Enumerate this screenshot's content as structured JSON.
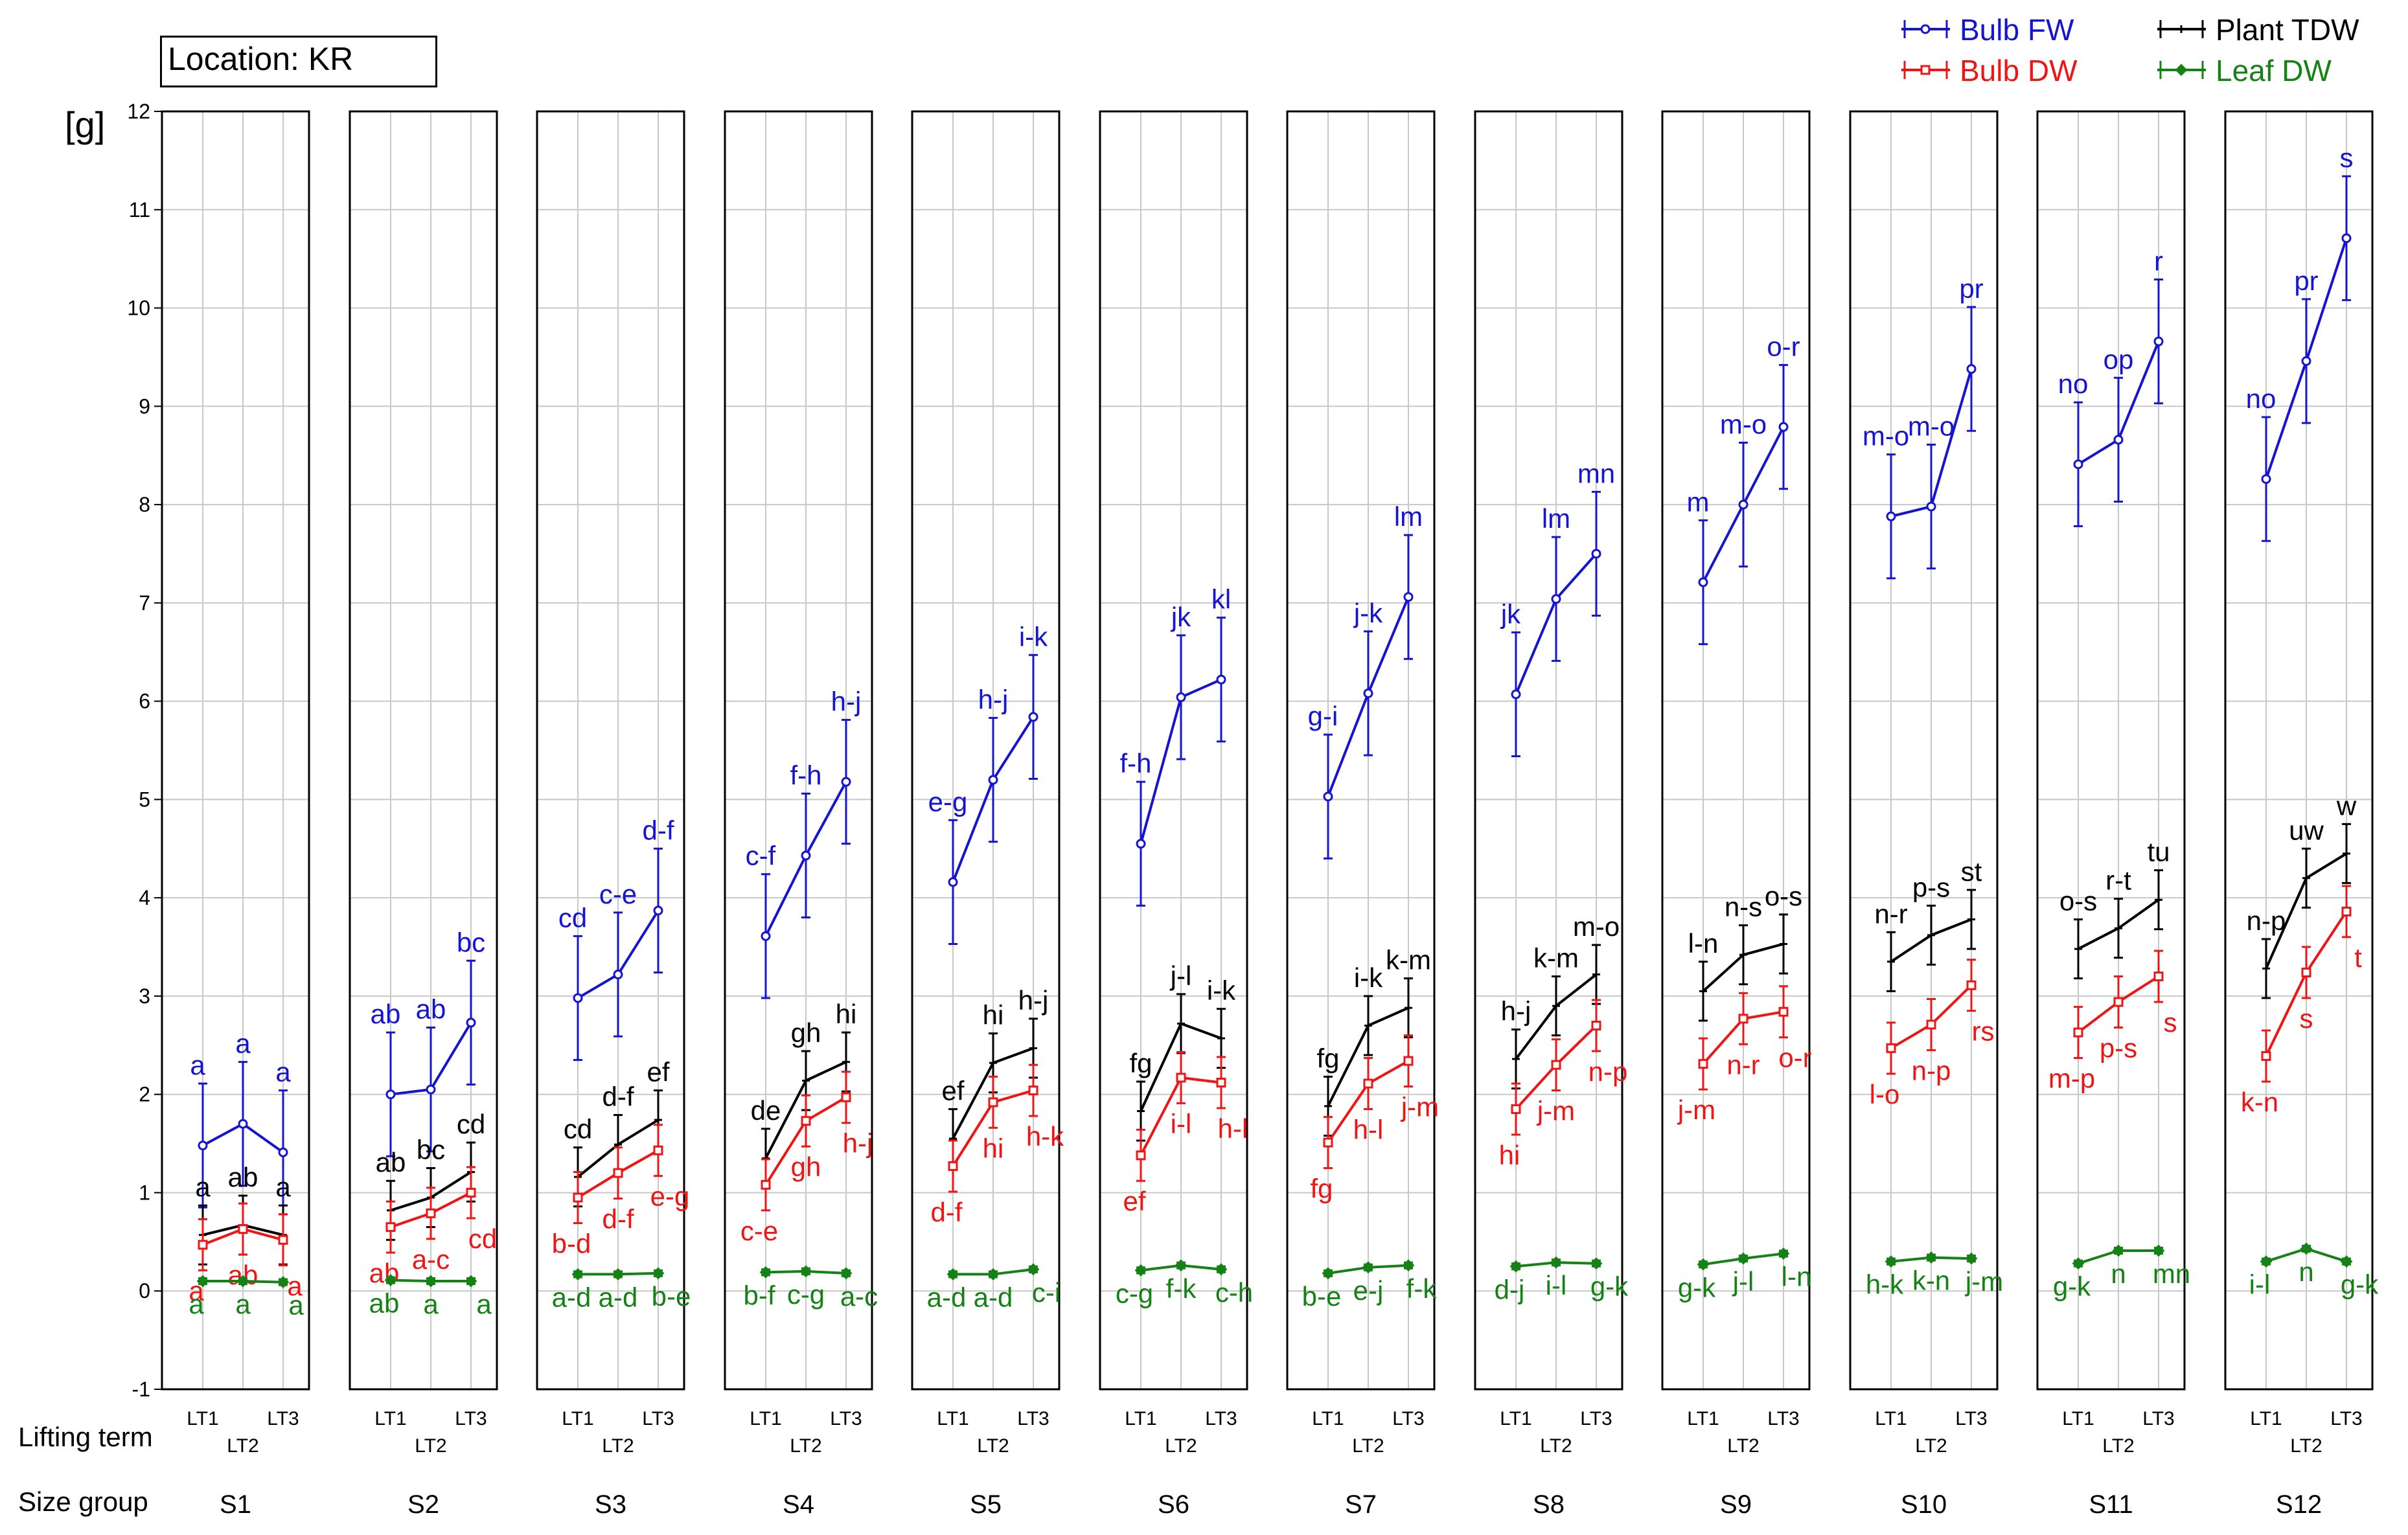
{
  "location_label": "Location: KR",
  "unit_label": "[g]",
  "lifting_term_label": "Lifting term",
  "size_group_label": "Size group",
  "colors": {
    "bulb_fw": "#1414d2",
    "bulb_dw": "#f01414",
    "plant_tdw": "#000000",
    "leaf_dw": "#148214"
  },
  "legend": [
    {
      "name": "Bulb FW",
      "color": "#1414d2",
      "marker": "circle"
    },
    {
      "name": "Plant TDW",
      "color": "#000000",
      "marker": "plus"
    },
    {
      "name": "Bulb DW",
      "color": "#f01414",
      "marker": "square"
    },
    {
      "name": "Leaf DW",
      "color": "#148214",
      "marker": "diamond"
    }
  ],
  "chart_data": {
    "type": "line",
    "title": "",
    "ylabel": "[g]",
    "ylim": [
      -1,
      12
    ],
    "yticks": [
      -1,
      0,
      1,
      2,
      3,
      4,
      5,
      6,
      7,
      8,
      9,
      10,
      11,
      12
    ],
    "grid": true,
    "legend_position": "top-right",
    "lifting_terms": [
      "LT1",
      "LT2",
      "LT3"
    ],
    "size_groups": [
      "S1",
      "S2",
      "S3",
      "S4",
      "S5",
      "S6",
      "S7",
      "S8",
      "S9",
      "S10",
      "S11",
      "S12"
    ],
    "panels": [
      {
        "size_group": "S1",
        "bulb_fw": {
          "values": [
            1.48,
            1.7,
            1.41
          ],
          "err": [
            0.63,
            0.63,
            0.63
          ],
          "letters": [
            "a",
            "a",
            "a"
          ]
        },
        "plant_tdw": {
          "values": [
            0.57,
            0.67,
            0.57
          ],
          "err": [
            0.3,
            0.3,
            0.3
          ],
          "letters": [
            "a",
            "ab",
            "a"
          ]
        },
        "bulb_dw": {
          "values": [
            0.47,
            0.63,
            0.52
          ],
          "err": [
            0.26,
            0.26,
            0.26
          ],
          "letters": [
            "a",
            "ab",
            "a"
          ]
        },
        "leaf_dw": {
          "values": [
            0.1,
            0.1,
            0.09
          ],
          "err": [
            0.03,
            0.03,
            0.03
          ],
          "letters": [
            "a",
            "a",
            "a"
          ]
        }
      },
      {
        "size_group": "S2",
        "bulb_fw": {
          "values": [
            2.0,
            2.05,
            2.73
          ],
          "err": [
            0.63,
            0.63,
            0.63
          ],
          "letters": [
            "ab",
            "ab",
            "bc"
          ]
        },
        "plant_tdw": {
          "values": [
            0.82,
            0.95,
            1.21
          ],
          "err": [
            0.3,
            0.3,
            0.3
          ],
          "letters": [
            "ab",
            "bc",
            "cd"
          ]
        },
        "bulb_dw": {
          "values": [
            0.65,
            0.79,
            1.0
          ],
          "err": [
            0.26,
            0.26,
            0.26
          ],
          "letters": [
            "ab",
            "a-c",
            "cd"
          ]
        },
        "leaf_dw": {
          "values": [
            0.11,
            0.1,
            0.1
          ],
          "err": [
            0.03,
            0.03,
            0.03
          ],
          "letters": [
            "ab",
            "a",
            "a"
          ]
        }
      },
      {
        "size_group": "S3",
        "bulb_fw": {
          "values": [
            2.98,
            3.22,
            3.87
          ],
          "err": [
            0.63,
            0.63,
            0.63
          ],
          "letters": [
            "cd",
            "c-e",
            "d-f"
          ]
        },
        "plant_tdw": {
          "values": [
            1.16,
            1.49,
            1.74
          ],
          "err": [
            0.3,
            0.3,
            0.3
          ],
          "letters": [
            "cd",
            "d-f",
            "ef"
          ]
        },
        "bulb_dw": {
          "values": [
            0.95,
            1.2,
            1.43
          ],
          "err": [
            0.26,
            0.26,
            0.26
          ],
          "letters": [
            "b-d",
            "d-f",
            "e-g"
          ]
        },
        "leaf_dw": {
          "values": [
            0.17,
            0.17,
            0.18
          ],
          "err": [
            0.03,
            0.03,
            0.03
          ],
          "letters": [
            "a-d",
            "a-d",
            "b-e"
          ]
        }
      },
      {
        "size_group": "S4",
        "bulb_fw": {
          "values": [
            3.61,
            4.43,
            5.18
          ],
          "err": [
            0.63,
            0.63,
            0.63
          ],
          "letters": [
            "c-f",
            "f-h",
            "h-j"
          ]
        },
        "plant_tdw": {
          "values": [
            1.35,
            2.14,
            2.33
          ],
          "err": [
            0.3,
            0.3,
            0.3
          ],
          "letters": [
            "de",
            "gh",
            "hi"
          ]
        },
        "bulb_dw": {
          "values": [
            1.08,
            1.73,
            1.97
          ],
          "err": [
            0.26,
            0.26,
            0.26
          ],
          "letters": [
            "c-e",
            "gh",
            "h-j"
          ]
        },
        "leaf_dw": {
          "values": [
            0.19,
            0.2,
            0.18
          ],
          "err": [
            0.03,
            0.03,
            0.03
          ],
          "letters": [
            "b-f",
            "c-g",
            "a-c"
          ]
        }
      },
      {
        "size_group": "S5",
        "bulb_fw": {
          "values": [
            4.16,
            5.2,
            5.84
          ],
          "err": [
            0.63,
            0.63,
            0.63
          ],
          "letters": [
            "e-g",
            "h-j",
            "i-k"
          ]
        },
        "plant_tdw": {
          "values": [
            1.55,
            2.32,
            2.47
          ],
          "err": [
            0.3,
            0.3,
            0.3
          ],
          "letters": [
            "ef",
            "hi",
            "h-j"
          ]
        },
        "bulb_dw": {
          "values": [
            1.27,
            1.92,
            2.04
          ],
          "err": [
            0.26,
            0.26,
            0.26
          ],
          "letters": [
            "d-f",
            "hi",
            "h-k"
          ]
        },
        "leaf_dw": {
          "values": [
            0.17,
            0.17,
            0.22
          ],
          "err": [
            0.03,
            0.03,
            0.03
          ],
          "letters": [
            "a-d",
            "a-d",
            "c-i"
          ]
        }
      },
      {
        "size_group": "S6",
        "bulb_fw": {
          "values": [
            4.55,
            6.04,
            6.22
          ],
          "err": [
            0.63,
            0.63,
            0.63
          ],
          "letters": [
            "f-h",
            "jk",
            "kl"
          ]
        },
        "plant_tdw": {
          "values": [
            1.83,
            2.72,
            2.57
          ],
          "err": [
            0.3,
            0.3,
            0.3
          ],
          "letters": [
            "fg",
            "j-l",
            "i-k"
          ]
        },
        "bulb_dw": {
          "values": [
            1.38,
            2.17,
            2.12
          ],
          "err": [
            0.26,
            0.26,
            0.26
          ],
          "letters": [
            "ef",
            "i-l",
            "h-l"
          ]
        },
        "leaf_dw": {
          "values": [
            0.21,
            0.26,
            0.22
          ],
          "err": [
            0.03,
            0.03,
            0.03
          ],
          "letters": [
            "c-g",
            "f-k",
            "c-h"
          ]
        }
      },
      {
        "size_group": "S7",
        "bulb_fw": {
          "values": [
            5.03,
            6.08,
            7.06
          ],
          "err": [
            0.63,
            0.63,
            0.63
          ],
          "letters": [
            "g-i",
            "j-k",
            "lm"
          ]
        },
        "plant_tdw": {
          "values": [
            1.88,
            2.7,
            2.88
          ],
          "err": [
            0.3,
            0.3,
            0.3
          ],
          "letters": [
            "fg",
            "i-k",
            "k-m"
          ]
        },
        "bulb_dw": {
          "values": [
            1.51,
            2.11,
            2.34
          ],
          "err": [
            0.26,
            0.26,
            0.26
          ],
          "letters": [
            "fg",
            "h-l",
            "j-m"
          ]
        },
        "leaf_dw": {
          "values": [
            0.18,
            0.24,
            0.26
          ],
          "err": [
            0.03,
            0.03,
            0.03
          ],
          "letters": [
            "b-e",
            "e-j",
            "f-k"
          ]
        }
      },
      {
        "size_group": "S8",
        "bulb_fw": {
          "values": [
            6.07,
            7.04,
            7.5
          ],
          "err": [
            0.63,
            0.63,
            0.63
          ],
          "letters": [
            "jk",
            "lm",
            "mn"
          ]
        },
        "plant_tdw": {
          "values": [
            2.36,
            2.9,
            3.22
          ],
          "err": [
            0.3,
            0.3,
            0.3
          ],
          "letters": [
            "h-j",
            "k-m",
            "m-o"
          ]
        },
        "bulb_dw": {
          "values": [
            1.85,
            2.3,
            2.7
          ],
          "err": [
            0.26,
            0.26,
            0.26
          ],
          "letters": [
            "hi",
            "j-m",
            "n-p"
          ]
        },
        "leaf_dw": {
          "values": [
            0.25,
            0.29,
            0.28
          ],
          "err": [
            0.03,
            0.03,
            0.03
          ],
          "letters": [
            "d-j",
            "i-l",
            "g-k"
          ]
        }
      },
      {
        "size_group": "S9",
        "bulb_fw": {
          "values": [
            7.21,
            8.0,
            8.79
          ],
          "err": [
            0.63,
            0.63,
            0.63
          ],
          "letters": [
            "m",
            "m-o",
            "o-r"
          ]
        },
        "plant_tdw": {
          "values": [
            3.05,
            3.42,
            3.53
          ],
          "err": [
            0.3,
            0.3,
            0.3
          ],
          "letters": [
            "l-n",
            "n-s",
            "o-s"
          ]
        },
        "bulb_dw": {
          "values": [
            2.31,
            2.77,
            2.84
          ],
          "err": [
            0.26,
            0.26,
            0.26
          ],
          "letters": [
            "j-m",
            "n-r",
            "o-r"
          ]
        },
        "leaf_dw": {
          "values": [
            0.27,
            0.33,
            0.38
          ],
          "err": [
            0.03,
            0.03,
            0.03
          ],
          "letters": [
            "g-k",
            "j-l",
            "l-n"
          ]
        }
      },
      {
        "size_group": "S10",
        "bulb_fw": {
          "values": [
            7.88,
            7.98,
            9.38
          ],
          "err": [
            0.63,
            0.63,
            0.63
          ],
          "letters": [
            "m-o",
            "m-o",
            "pr"
          ]
        },
        "plant_tdw": {
          "values": [
            3.35,
            3.62,
            3.78
          ],
          "err": [
            0.3,
            0.3,
            0.3
          ],
          "letters": [
            "n-r",
            "p-s",
            "st"
          ]
        },
        "bulb_dw": {
          "values": [
            2.47,
            2.71,
            3.11
          ],
          "err": [
            0.26,
            0.26,
            0.26
          ],
          "letters": [
            "l-o",
            "n-p",
            "rs"
          ]
        },
        "leaf_dw": {
          "values": [
            0.3,
            0.34,
            0.33
          ],
          "err": [
            0.03,
            0.03,
            0.03
          ],
          "letters": [
            "h-k",
            "k-n",
            "j-m"
          ]
        }
      },
      {
        "size_group": "S11",
        "bulb_fw": {
          "values": [
            8.41,
            8.66,
            9.66
          ],
          "err": [
            0.63,
            0.63,
            0.63
          ],
          "letters": [
            "no",
            "op",
            "r"
          ]
        },
        "plant_tdw": {
          "values": [
            3.48,
            3.69,
            3.98
          ],
          "err": [
            0.3,
            0.3,
            0.3
          ],
          "letters": [
            "o-s",
            "r-t",
            "tu"
          ]
        },
        "bulb_dw": {
          "values": [
            2.63,
            2.94,
            3.2
          ],
          "err": [
            0.26,
            0.26,
            0.26
          ],
          "letters": [
            "m-p",
            "p-s",
            "s"
          ]
        },
        "leaf_dw": {
          "values": [
            0.28,
            0.41,
            0.41
          ],
          "err": [
            0.03,
            0.03,
            0.03
          ],
          "letters": [
            "g-k",
            "n",
            "mn"
          ]
        }
      },
      {
        "size_group": "S12",
        "bulb_fw": {
          "values": [
            8.26,
            9.46,
            10.71
          ],
          "err": [
            0.63,
            0.63,
            0.63
          ],
          "letters": [
            "no",
            "pr",
            "s"
          ]
        },
        "plant_tdw": {
          "values": [
            3.28,
            4.2,
            4.45
          ],
          "err": [
            0.3,
            0.3,
            0.3
          ],
          "letters": [
            "n-p",
            "uw",
            "w"
          ]
        },
        "bulb_dw": {
          "values": [
            2.39,
            3.24,
            3.86
          ],
          "err": [
            0.26,
            0.26,
            0.26
          ],
          "letters": [
            "k-n",
            "s",
            "t"
          ]
        },
        "leaf_dw": {
          "values": [
            0.3,
            0.43,
            0.3
          ],
          "err": [
            0.03,
            0.03,
            0.03
          ],
          "letters": [
            "i-l",
            "n",
            "g-k"
          ]
        }
      }
    ]
  }
}
